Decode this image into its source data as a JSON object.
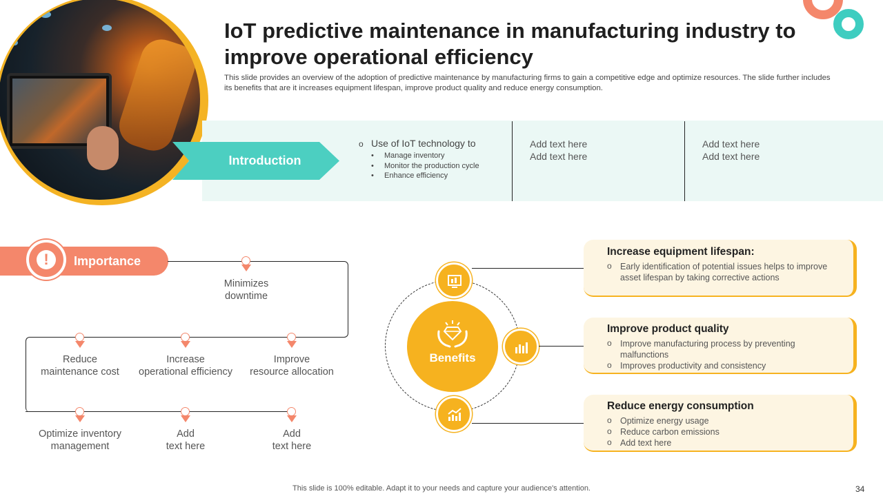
{
  "header": {
    "title": "IoT predictive maintenance in manufacturing industry to improve operational efficiency",
    "subtitle": "This slide provides an overview of the adoption of predictive maintenance by manufacturing firms to gain a competitive edge and optimize resources. The slide further includes its benefits that are it increases equipment lifespan, improve product quality and reduce energy consumption."
  },
  "introduction": {
    "label": "Introduction",
    "lead": "Use of IoT technology to",
    "bullets": [
      "Manage inventory",
      "Monitor the production cycle",
      "Enhance efficiency"
    ],
    "col2": [
      "Add text here",
      "Add text here"
    ],
    "col3": [
      "Add text here",
      "Add text here"
    ]
  },
  "importance": {
    "label": "Importance",
    "icon": "exclamation-icon",
    "items": {
      "minimizes": [
        "Minimizes",
        "downtime"
      ],
      "reduce": [
        "Reduce",
        "maintenance cost"
      ],
      "increase": [
        "Increase",
        "operational efficiency"
      ],
      "improve": [
        "Improve",
        "resource allocation"
      ],
      "optimize": [
        "Optimize inventory",
        "management"
      ],
      "add1": [
        "Add",
        "text here"
      ],
      "add2": [
        "Add",
        "text here"
      ]
    }
  },
  "benefits": {
    "label": "Benefits",
    "cards": [
      {
        "title": "Increase equipment lifespan:",
        "points": [
          "Early identification of potential issues helps to improve asset lifespan by taking corrective actions"
        ]
      },
      {
        "title": "Improve product quality",
        "points": [
          "Improve manufacturing process by preventing malfunctions",
          "Improves productivity and consistency"
        ]
      },
      {
        "title": "Reduce energy consumption",
        "points": [
          "Optimize energy usage",
          "Reduce carbon emissions",
          "Add text here"
        ]
      }
    ]
  },
  "footer": {
    "note": "This slide is 100% editable. Adapt it to your needs and capture your audience's attention.",
    "page": "34"
  },
  "colors": {
    "teal": "#4ccfc1",
    "salmon": "#f4876b",
    "gold": "#f6b21f",
    "card_bg": "#fdf5e2",
    "intro_band": "#ebf8f5"
  }
}
